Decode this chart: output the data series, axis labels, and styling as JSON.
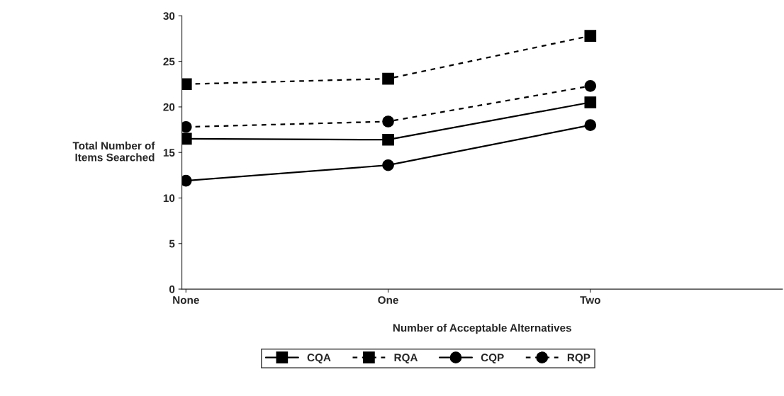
{
  "chart_data": {
    "type": "line",
    "xlabel": "Number of Acceptable Alternatives",
    "ylabel": "Total Number of\nItems Searched",
    "categories": [
      "None",
      "One",
      "Two"
    ],
    "series": [
      {
        "name": "CQA",
        "color": "#000000",
        "marker": "square",
        "line_style": "solid",
        "values": [
          16.5,
          16.4,
          20.5
        ]
      },
      {
        "name": "RQA",
        "color": "#000000",
        "marker": "square",
        "line_style": "dashed",
        "values": [
          22.5,
          23.1,
          27.8
        ]
      },
      {
        "name": "CQP",
        "color": "#000000",
        "marker": "circle",
        "line_style": "solid",
        "values": [
          11.9,
          13.6,
          18.0
        ]
      },
      {
        "name": "RQP",
        "color": "#000000",
        "marker": "circle",
        "line_style": "dashed",
        "values": [
          17.8,
          18.4,
          22.3
        ]
      }
    ],
    "ylim": [
      0,
      30
    ],
    "yticks": [
      0,
      5,
      10,
      15,
      20,
      25,
      30
    ],
    "grid": false,
    "legend": "bottom"
  }
}
